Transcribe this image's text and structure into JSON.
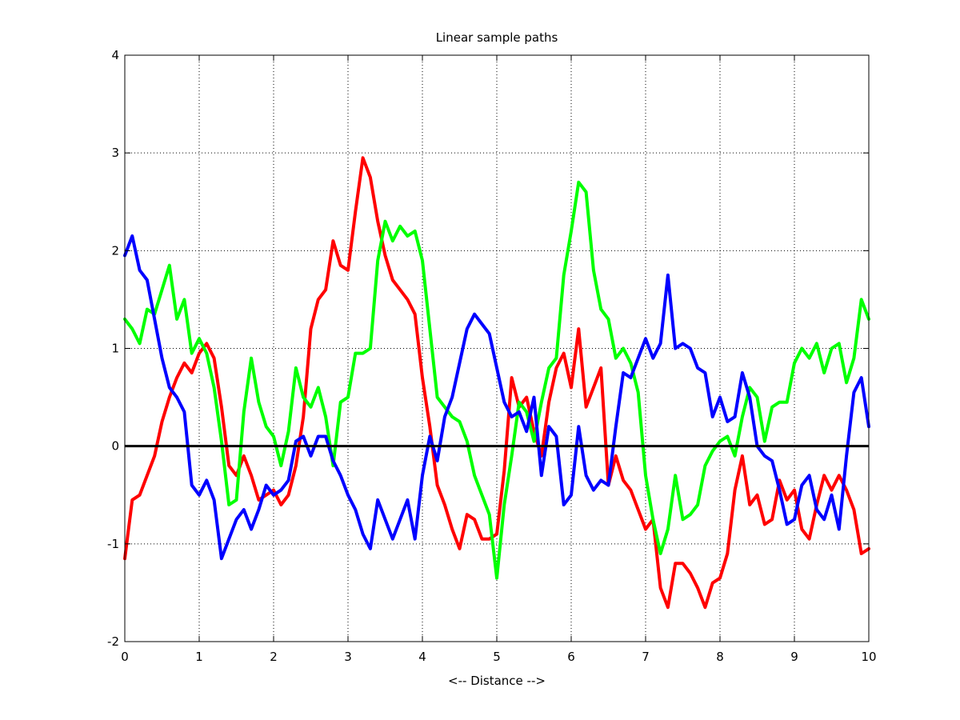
{
  "chart_data": {
    "type": "line",
    "title": "Linear sample paths",
    "xlabel": "<-- Distance -->",
    "ylabel": "",
    "xlim": [
      0,
      10
    ],
    "ylim": [
      -2,
      4
    ],
    "xticks": [
      0,
      1,
      2,
      3,
      4,
      5,
      6,
      7,
      8,
      9,
      10
    ],
    "yticks": [
      -2,
      -1,
      0,
      1,
      2,
      3,
      4
    ],
    "grid": true,
    "legend": "none",
    "reference_line": {
      "y": 0,
      "color": "#000000"
    },
    "series": [
      {
        "color": "#ff0000",
        "x": [
          0,
          0.1,
          0.2,
          0.3,
          0.4,
          0.5,
          0.6,
          0.7,
          0.8,
          0.9,
          1.0,
          1.1,
          1.2,
          1.3,
          1.4,
          1.5,
          1.6,
          1.7,
          1.8,
          1.9,
          2.0,
          2.1,
          2.2,
          2.3,
          2.4,
          2.5,
          2.6,
          2.7,
          2.8,
          2.9,
          3.0,
          3.1,
          3.2,
          3.3,
          3.4,
          3.5,
          3.6,
          3.7,
          3.8,
          3.9,
          4.0,
          4.1,
          4.2,
          4.3,
          4.4,
          4.5,
          4.6,
          4.7,
          4.8,
          4.9,
          5.0,
          5.1,
          5.2,
          5.3,
          5.4,
          5.5,
          5.6,
          5.7,
          5.8,
          5.9,
          6.0,
          6.1,
          6.2,
          6.3,
          6.4,
          6.5,
          6.6,
          6.7,
          6.8,
          6.9,
          7.0,
          7.1,
          7.2,
          7.3,
          7.4,
          7.5,
          7.6,
          7.7,
          7.8,
          7.9,
          8.0,
          8.1,
          8.2,
          8.3,
          8.4,
          8.5,
          8.6,
          8.7,
          8.8,
          8.9,
          9.0,
          9.1,
          9.2,
          9.3,
          9.4,
          9.5,
          9.6,
          9.7,
          9.8,
          9.9,
          10.0
        ],
        "y": [
          -1.15,
          -0.55,
          -0.5,
          -0.3,
          -0.1,
          0.25,
          0.5,
          0.7,
          0.85,
          0.75,
          0.95,
          1.05,
          0.9,
          0.4,
          -0.2,
          -0.3,
          -0.1,
          -0.3,
          -0.55,
          -0.5,
          -0.45,
          -0.6,
          -0.5,
          -0.2,
          0.3,
          1.2,
          1.5,
          1.6,
          2.1,
          1.85,
          1.8,
          2.4,
          2.95,
          2.75,
          2.3,
          1.95,
          1.7,
          1.6,
          1.5,
          1.35,
          0.7,
          0.2,
          -0.4,
          -0.6,
          -0.85,
          -1.05,
          -0.7,
          -0.75,
          -0.95,
          -0.95,
          -0.9,
          -0.25,
          0.7,
          0.4,
          0.5,
          0.15,
          -0.1,
          0.45,
          0.8,
          0.95,
          0.6,
          1.2,
          0.4,
          0.6,
          0.8,
          -0.4,
          -0.1,
          -0.35,
          -0.45,
          -0.65,
          -0.85,
          -0.75,
          -1.45,
          -1.65,
          -1.2,
          -1.2,
          -1.3,
          -1.45,
          -1.65,
          -1.4,
          -1.35,
          -1.1,
          -0.45,
          -0.1,
          -0.6,
          -0.5,
          -0.8,
          -0.75,
          -0.35,
          -0.55,
          -0.45,
          -0.85,
          -0.95,
          -0.6,
          -0.3,
          -0.45,
          -0.3,
          -0.45,
          -0.65,
          -1.1,
          -1.05
        ]
      },
      {
        "color": "#00ff00",
        "x": [
          0,
          0.1,
          0.2,
          0.3,
          0.4,
          0.5,
          0.6,
          0.7,
          0.8,
          0.9,
          1.0,
          1.1,
          1.2,
          1.3,
          1.4,
          1.5,
          1.6,
          1.7,
          1.8,
          1.9,
          2.0,
          2.1,
          2.2,
          2.3,
          2.4,
          2.5,
          2.6,
          2.7,
          2.8,
          2.9,
          3.0,
          3.1,
          3.2,
          3.3,
          3.4,
          3.5,
          3.6,
          3.7,
          3.8,
          3.9,
          4.0,
          4.1,
          4.2,
          4.3,
          4.4,
          4.5,
          4.6,
          4.7,
          4.8,
          4.9,
          5.0,
          5.1,
          5.2,
          5.3,
          5.4,
          5.5,
          5.6,
          5.7,
          5.8,
          5.9,
          6.0,
          6.1,
          6.2,
          6.3,
          6.4,
          6.5,
          6.6,
          6.7,
          6.8,
          6.9,
          7.0,
          7.1,
          7.2,
          7.3,
          7.4,
          7.5,
          7.6,
          7.7,
          7.8,
          7.9,
          8.0,
          8.1,
          8.2,
          8.3,
          8.4,
          8.5,
          8.6,
          8.7,
          8.8,
          8.9,
          9.0,
          9.1,
          9.2,
          9.3,
          9.4,
          9.5,
          9.6,
          9.7,
          9.8,
          9.9,
          10.0
        ],
        "y": [
          1.3,
          1.2,
          1.05,
          1.4,
          1.35,
          1.6,
          1.85,
          1.3,
          1.5,
          0.95,
          1.1,
          0.95,
          0.6,
          0.05,
          -0.6,
          -0.55,
          0.35,
          0.9,
          0.45,
          0.2,
          0.1,
          -0.2,
          0.15,
          0.8,
          0.5,
          0.4,
          0.6,
          0.3,
          -0.2,
          0.45,
          0.5,
          0.95,
          0.95,
          1.0,
          1.9,
          2.3,
          2.1,
          2.25,
          2.15,
          2.2,
          1.9,
          1.2,
          0.5,
          0.4,
          0.3,
          0.25,
          0.05,
          -0.3,
          -0.5,
          -0.7,
          -1.35,
          -0.6,
          -0.1,
          0.45,
          0.35,
          0.05,
          0.45,
          0.8,
          0.9,
          1.75,
          2.2,
          2.7,
          2.6,
          1.8,
          1.4,
          1.3,
          0.9,
          1.0,
          0.85,
          0.55,
          -0.3,
          -0.75,
          -1.1,
          -0.85,
          -0.3,
          -0.75,
          -0.7,
          -0.6,
          -0.2,
          -0.05,
          0.05,
          0.1,
          -0.1,
          0.3,
          0.6,
          0.5,
          0.05,
          0.4,
          0.45,
          0.45,
          0.85,
          1.0,
          0.9,
          1.05,
          0.75,
          1.0,
          1.05,
          0.65,
          0.9,
          1.5,
          1.3
        ]
      },
      {
        "color": "#0000ff",
        "x": [
          0,
          0.1,
          0.2,
          0.3,
          0.4,
          0.5,
          0.6,
          0.7,
          0.8,
          0.9,
          1.0,
          1.1,
          1.2,
          1.3,
          1.4,
          1.5,
          1.6,
          1.7,
          1.8,
          1.9,
          2.0,
          2.1,
          2.2,
          2.3,
          2.4,
          2.5,
          2.6,
          2.7,
          2.8,
          2.9,
          3.0,
          3.1,
          3.2,
          3.3,
          3.4,
          3.5,
          3.6,
          3.7,
          3.8,
          3.9,
          4.0,
          4.1,
          4.2,
          4.3,
          4.4,
          4.5,
          4.6,
          4.7,
          4.8,
          4.9,
          5.0,
          5.1,
          5.2,
          5.3,
          5.4,
          5.5,
          5.6,
          5.7,
          5.8,
          5.9,
          6.0,
          6.1,
          6.2,
          6.3,
          6.4,
          6.5,
          6.6,
          6.7,
          6.8,
          6.9,
          7.0,
          7.1,
          7.2,
          7.3,
          7.4,
          7.5,
          7.6,
          7.7,
          7.8,
          7.9,
          8.0,
          8.1,
          8.2,
          8.3,
          8.4,
          8.5,
          8.6,
          8.7,
          8.8,
          8.9,
          9.0,
          9.1,
          9.2,
          9.3,
          9.4,
          9.5,
          9.6,
          9.7,
          9.8,
          9.9,
          10.0
        ],
        "y": [
          1.95,
          2.15,
          1.8,
          1.7,
          1.3,
          0.9,
          0.6,
          0.5,
          0.35,
          -0.4,
          -0.5,
          -0.35,
          -0.55,
          -1.15,
          -0.95,
          -0.75,
          -0.65,
          -0.85,
          -0.65,
          -0.4,
          -0.5,
          -0.45,
          -0.35,
          0.05,
          0.1,
          -0.1,
          0.1,
          0.1,
          -0.15,
          -0.3,
          -0.5,
          -0.65,
          -0.9,
          -1.05,
          -0.55,
          -0.75,
          -0.95,
          -0.75,
          -0.55,
          -0.95,
          -0.3,
          0.1,
          -0.15,
          0.3,
          0.5,
          0.85,
          1.2,
          1.35,
          1.25,
          1.15,
          0.8,
          0.45,
          0.3,
          0.35,
          0.15,
          0.5,
          -0.3,
          0.2,
          0.1,
          -0.6,
          -0.5,
          0.2,
          -0.3,
          -0.45,
          -0.35,
          -0.4,
          0.2,
          0.75,
          0.7,
          0.9,
          1.1,
          0.9,
          1.05,
          1.75,
          1.0,
          1.05,
          1.0,
          0.8,
          0.75,
          0.3,
          0.5,
          0.25,
          0.3,
          0.75,
          0.5,
          0.0,
          -0.1,
          -0.15,
          -0.45,
          -0.8,
          -0.75,
          -0.4,
          -0.3,
          -0.65,
          -0.75,
          -0.5,
          -0.85,
          -0.1,
          0.55,
          0.7,
          0.2
        ]
      }
    ]
  }
}
